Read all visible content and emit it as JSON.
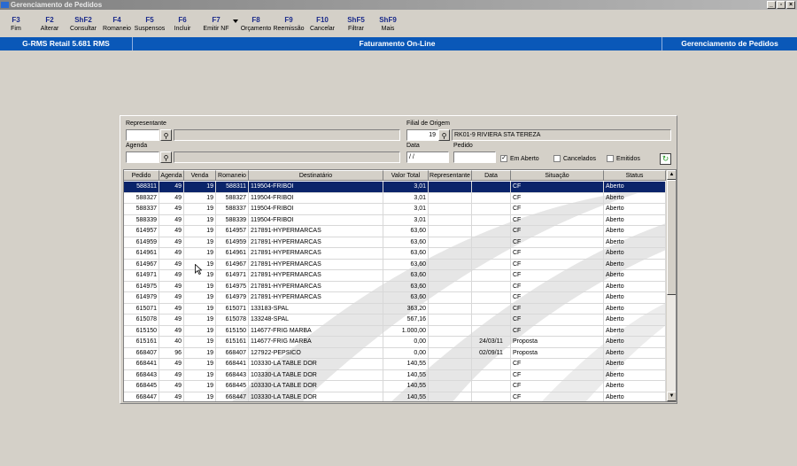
{
  "window": {
    "title": "Gerenciamento de Pedidos"
  },
  "toolbar": [
    {
      "key": "F3",
      "label": "Fim"
    },
    {
      "key": "F2",
      "label": "Alterar"
    },
    {
      "key": "ShF2",
      "label": "Consultar"
    },
    {
      "key": "F4",
      "label": "Romaneio"
    },
    {
      "key": "F5",
      "label": "Suspensos"
    },
    {
      "key": "F6",
      "label": "Incluir"
    },
    {
      "key": "F7",
      "label": "Emitir NF"
    },
    {
      "key": "F8",
      "label": "Orçamento"
    },
    {
      "key": "F9",
      "label": "Reemissão"
    },
    {
      "key": "F10",
      "label": "Cancelar"
    },
    {
      "key": "ShF5",
      "label": "Filtrar"
    },
    {
      "key": "ShF9",
      "label": "Mais"
    }
  ],
  "statusbar": {
    "left": "G-RMS Retail 5.681 RMS",
    "center": "Faturamento On-Line",
    "right": "Gerenciamento de Pedidos"
  },
  "filters": {
    "representante_label": "Representante",
    "representante_value": "",
    "representante_desc": "",
    "agenda_label": "Agenda",
    "agenda_value": "",
    "agenda_desc": "",
    "filial_label": "Filial de Origem",
    "filial_value": "19",
    "filial_desc": "RK01-9 RIVIERA STA TEREZA",
    "data_label": "Data",
    "data_value": " / /",
    "pedido_label": "Pedido",
    "pedido_value": "",
    "em_aberto": {
      "label": "Em Aberto",
      "checked": true
    },
    "cancelados": {
      "label": "Cancelados",
      "checked": false
    },
    "emitidos": {
      "label": "Emitidos",
      "checked": false
    }
  },
  "grid": {
    "columns": [
      "Pedido",
      "Agenda",
      "Venda",
      "Romaneio",
      "Destinatário",
      "Valor Total",
      "Representante",
      "Data",
      "Situação",
      "Status"
    ],
    "selected_index": 0,
    "rows": [
      [
        "588311",
        "49",
        "19",
        "588311",
        "119504-FRIBOI",
        "3,01",
        "",
        "",
        "CF",
        "Aberto"
      ],
      [
        "588327",
        "49",
        "19",
        "588327",
        "119504-FRIBOI",
        "3,01",
        "",
        "",
        "CF",
        "Aberto"
      ],
      [
        "588337",
        "49",
        "19",
        "588337",
        "119504-FRIBOI",
        "3,01",
        "",
        "",
        "CF",
        "Aberto"
      ],
      [
        "588339",
        "49",
        "19",
        "588339",
        "119504-FRIBOI",
        "3,01",
        "",
        "",
        "CF",
        "Aberto"
      ],
      [
        "614957",
        "49",
        "19",
        "614957",
        "217891-HYPERMARCAS",
        "63,60",
        "",
        "",
        "CF",
        "Aberto"
      ],
      [
        "614959",
        "49",
        "19",
        "614959",
        "217891-HYPERMARCAS",
        "63,60",
        "",
        "",
        "CF",
        "Aberto"
      ],
      [
        "614961",
        "49",
        "19",
        "614961",
        "217891-HYPERMARCAS",
        "63,60",
        "",
        "",
        "CF",
        "Aberto"
      ],
      [
        "614967",
        "49",
        "19",
        "614967",
        "217891-HYPERMARCAS",
        "63,60",
        "",
        "",
        "CF",
        "Aberto"
      ],
      [
        "614971",
        "49",
        "19",
        "614971",
        "217891-HYPERMARCAS",
        "63,60",
        "",
        "",
        "CF",
        "Aberto"
      ],
      [
        "614975",
        "49",
        "19",
        "614975",
        "217891-HYPERMARCAS",
        "63,60",
        "",
        "",
        "CF",
        "Aberto"
      ],
      [
        "614979",
        "49",
        "19",
        "614979",
        "217891-HYPERMARCAS",
        "63,60",
        "",
        "",
        "CF",
        "Aberto"
      ],
      [
        "615071",
        "49",
        "19",
        "615071",
        "133183-SPAL",
        "363,20",
        "",
        "",
        "CF",
        "Aberto"
      ],
      [
        "615078",
        "49",
        "19",
        "615078",
        "133248-SPAL",
        "567,16",
        "",
        "",
        "CF",
        "Aberto"
      ],
      [
        "615150",
        "49",
        "19",
        "615150",
        "114677-FRIG MARBA",
        "1.000,00",
        "",
        "",
        "CF",
        "Aberto"
      ],
      [
        "615161",
        "40",
        "19",
        "615161",
        "114677-FRIG MARBA",
        "0,00",
        "",
        "24/03/11",
        "Proposta",
        "Aberto"
      ],
      [
        "668407",
        "96",
        "19",
        "668407",
        "127922-PEPSICO",
        "0,00",
        "",
        "02/09/11",
        "Proposta",
        "Aberto"
      ],
      [
        "668441",
        "49",
        "19",
        "668441",
        "103330-LA TABLE DOR",
        "140,55",
        "",
        "",
        "CF",
        "Aberto"
      ],
      [
        "668443",
        "49",
        "19",
        "668443",
        "103330-LA TABLE DOR",
        "140,55",
        "",
        "",
        "CF",
        "Aberto"
      ],
      [
        "668445",
        "49",
        "19",
        "668445",
        "103330-LA TABLE DOR",
        "140,55",
        "",
        "",
        "CF",
        "Aberto"
      ],
      [
        "668447",
        "49",
        "19",
        "668447",
        "103330-LA TABLE DOR",
        "140,55",
        "",
        "",
        "CF",
        "Aberto"
      ]
    ]
  },
  "colors": {
    "statusbar": "#0a58b8",
    "selection": "#0a246a",
    "toolbar_key": "#1a2a8a"
  }
}
